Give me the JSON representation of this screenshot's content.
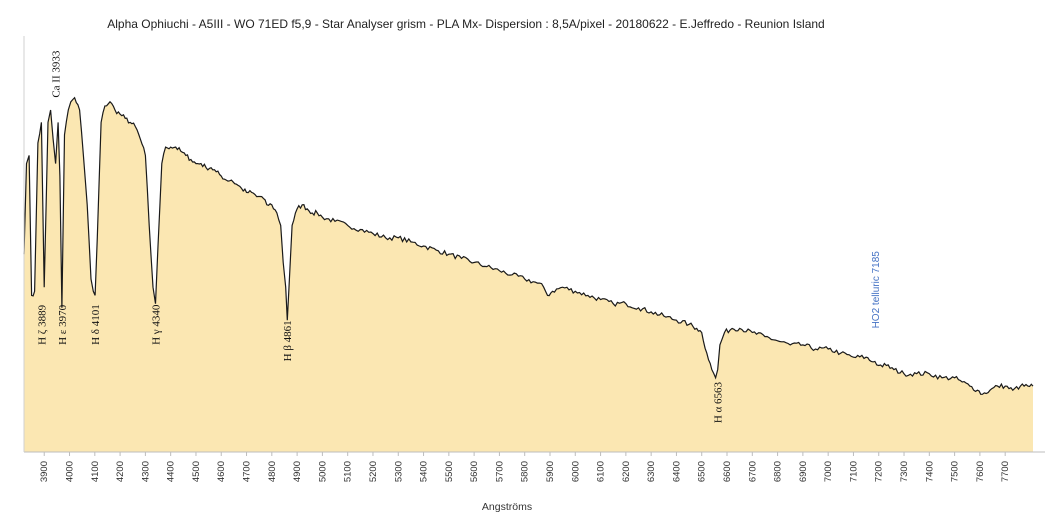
{
  "chart_data": {
    "type": "area",
    "title": "Alpha Ophiuchi - A5III - WO 71ED  f5,9 - Star Analyser grism - PLA Mx- Dispersion : 8,5A/pixel - 20180622 - E.Jeffredo - Reunion Island",
    "xlabel": "Angströms",
    "ylabel": "",
    "xlim": [
      3820,
      7810
    ],
    "ylim": [
      0,
      1
    ],
    "grid": false,
    "legend": "none",
    "colors": {
      "fill": "#fbe7b2",
      "line": "#1a1a1a",
      "telluric": "#4472c4"
    },
    "x_ticks": [
      "3900",
      "4000",
      "4100",
      "4200",
      "4300",
      "4400",
      "4500",
      "4600",
      "4700",
      "4800",
      "4900",
      "5000",
      "5100",
      "5200",
      "5300",
      "5400",
      "5500",
      "5600",
      "5700",
      "5800",
      "5900",
      "6000",
      "6100",
      "6200",
      "6300",
      "6400",
      "6500",
      "6600",
      "6700",
      "6800",
      "6900",
      "7000",
      "7100",
      "7200",
      "7300",
      "7400",
      "7500",
      "7600",
      "7700"
    ],
    "x": [
      3820,
      3830,
      3840,
      3850,
      3862,
      3875,
      3889,
      3900,
      3915,
      3925,
      3935,
      3945,
      3955,
      3962,
      3970,
      3980,
      3995,
      4005,
      4020,
      4040,
      4055,
      4070,
      4085,
      4094,
      4101,
      4110,
      4125,
      4140,
      4160,
      4180,
      4200,
      4220,
      4240,
      4260,
      4280,
      4300,
      4315,
      4330,
      4340,
      4350,
      4365,
      4380,
      4400,
      4420,
      4440,
      4460,
      4480,
      4500,
      4520,
      4540,
      4560,
      4580,
      4600,
      4620,
      4640,
      4660,
      4680,
      4700,
      4720,
      4740,
      4760,
      4780,
      4800,
      4820,
      4835,
      4845,
      4855,
      4861,
      4868,
      4880,
      4900,
      4920,
      4940,
      4960,
      4980,
      5000,
      5050,
      5100,
      5150,
      5200,
      5250,
      5300,
      5350,
      5400,
      5450,
      5500,
      5550,
      5600,
      5650,
      5700,
      5750,
      5800,
      5850,
      5875,
      5890,
      5910,
      5950,
      6000,
      6050,
      6100,
      6150,
      6200,
      6250,
      6300,
      6350,
      6400,
      6450,
      6480,
      6500,
      6520,
      6540,
      6555,
      6563,
      6572,
      6590,
      6620,
      6650,
      6700,
      6750,
      6800,
      6850,
      6900,
      6950,
      7000,
      7050,
      7100,
      7150,
      7170,
      7185,
      7200,
      7230,
      7260,
      7300,
      7350,
      7400,
      7450,
      7500,
      7530,
      7560,
      7590,
      7610,
      7640,
      7670,
      7700,
      7730,
      7760,
      7790,
      7810
    ],
    "y": [
      0.48,
      0.7,
      0.72,
      0.38,
      0.39,
      0.75,
      0.8,
      0.4,
      0.8,
      0.83,
      0.76,
      0.7,
      0.8,
      0.67,
      0.35,
      0.77,
      0.83,
      0.85,
      0.86,
      0.83,
      0.72,
      0.6,
      0.42,
      0.39,
      0.38,
      0.52,
      0.8,
      0.84,
      0.85,
      0.83,
      0.82,
      0.81,
      0.8,
      0.79,
      0.76,
      0.72,
      0.55,
      0.4,
      0.36,
      0.5,
      0.7,
      0.74,
      0.74,
      0.74,
      0.73,
      0.72,
      0.71,
      0.7,
      0.7,
      0.69,
      0.69,
      0.68,
      0.67,
      0.66,
      0.66,
      0.65,
      0.64,
      0.63,
      0.63,
      0.62,
      0.62,
      0.6,
      0.6,
      0.58,
      0.55,
      0.46,
      0.4,
      0.32,
      0.4,
      0.55,
      0.59,
      0.6,
      0.59,
      0.58,
      0.58,
      0.57,
      0.56,
      0.55,
      0.54,
      0.53,
      0.52,
      0.52,
      0.51,
      0.5,
      0.49,
      0.48,
      0.47,
      0.46,
      0.45,
      0.44,
      0.43,
      0.42,
      0.41,
      0.4,
      0.38,
      0.39,
      0.4,
      0.39,
      0.38,
      0.37,
      0.36,
      0.36,
      0.35,
      0.34,
      0.33,
      0.32,
      0.31,
      0.3,
      0.29,
      0.24,
      0.2,
      0.18,
      0.2,
      0.26,
      0.29,
      0.3,
      0.3,
      0.29,
      0.28,
      0.27,
      0.26,
      0.26,
      0.25,
      0.25,
      0.24,
      0.23,
      0.23,
      0.22,
      0.22,
      0.21,
      0.21,
      0.2,
      0.19,
      0.19,
      0.19,
      0.18,
      0.18,
      0.17,
      0.16,
      0.15,
      0.14,
      0.15,
      0.16,
      0.16,
      0.15,
      0.16,
      0.16,
      0.16
    ],
    "annotations": [
      {
        "text": "H ζ 3889",
        "x": 3889,
        "y": 0.26,
        "color": "#111111"
      },
      {
        "text": "H ε 3970",
        "x": 3970,
        "y": 0.26,
        "color": "#111111"
      },
      {
        "text": "H δ 4101",
        "x": 4101,
        "y": 0.26,
        "color": "#111111"
      },
      {
        "text": "H γ 4340",
        "x": 4340,
        "y": 0.26,
        "color": "#111111"
      },
      {
        "text": "H β 4861",
        "x": 4861,
        "y": 0.22,
        "color": "#111111"
      },
      {
        "text": "H α 6563",
        "x": 6563,
        "y": 0.07,
        "color": "#111111"
      },
      {
        "text": "Ca II 3933",
        "x": 3945,
        "y": 0.86,
        "color": "#111111"
      },
      {
        "text": "HO2 telluric 7185",
        "x": 7185,
        "y": 0.3,
        "color": "#4472c4"
      }
    ]
  }
}
